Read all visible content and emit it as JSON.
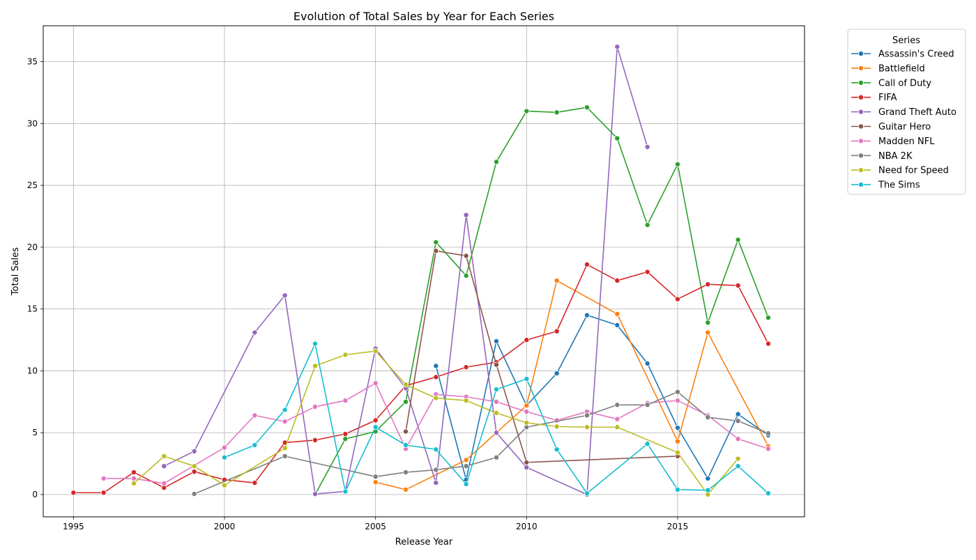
{
  "chart_data": {
    "type": "line",
    "title": "Evolution of Total Sales by Year for Each Series",
    "xlabel": "Release Year",
    "ylabel": "Total Sales",
    "xlim": [
      1994,
      2019.2
    ],
    "ylim": [
      -1.8,
      37.9
    ],
    "xticks": [
      1995,
      2000,
      2005,
      2010,
      2015
    ],
    "yticks": [
      0,
      5,
      10,
      15,
      20,
      25,
      30,
      35
    ],
    "grid": true,
    "legend": {
      "title": "Series",
      "placement": "outside-top-right"
    },
    "series": [
      {
        "name": "Assassin's Creed",
        "color": "#1f77b4",
        "points": [
          [
            2007,
            10.4
          ],
          [
            2008,
            1.2
          ],
          [
            2009,
            12.4
          ],
          [
            2010,
            7.2
          ],
          [
            2011,
            9.8
          ],
          [
            2012,
            14.5
          ],
          [
            2013,
            13.7
          ],
          [
            2014,
            10.6
          ],
          [
            2015,
            5.4
          ],
          [
            2016,
            1.3
          ],
          [
            2017,
            6.5
          ],
          [
            2018,
            4.8
          ]
        ]
      },
      {
        "name": "Battlefield",
        "color": "#ff7f0e",
        "points": [
          [
            2005,
            1.0
          ],
          [
            2006,
            0.4
          ],
          [
            2008,
            2.8
          ],
          [
            2010,
            7.2
          ],
          [
            2011,
            17.3
          ],
          [
            2013,
            14.6
          ],
          [
            2015,
            4.3
          ],
          [
            2016,
            13.1
          ],
          [
            2018,
            3.9
          ]
        ]
      },
      {
        "name": "Call of Duty",
        "color": "#2ca02c",
        "points": [
          [
            2003,
            0.0
          ],
          [
            2004,
            4.5
          ],
          [
            2005,
            5.1
          ],
          [
            2006,
            7.5
          ],
          [
            2007,
            20.4
          ],
          [
            2008,
            17.7
          ],
          [
            2009,
            26.9
          ],
          [
            2010,
            31.0
          ],
          [
            2011,
            30.9
          ],
          [
            2012,
            31.3
          ],
          [
            2013,
            28.8
          ],
          [
            2014,
            21.8
          ],
          [
            2015,
            26.7
          ],
          [
            2016,
            13.9
          ],
          [
            2017,
            20.6
          ],
          [
            2018,
            14.3
          ]
        ]
      },
      {
        "name": "FIFA",
        "color": "#d62728",
        "points": [
          [
            1995,
            0.15
          ],
          [
            1996,
            0.15
          ],
          [
            1997,
            1.8
          ],
          [
            1998,
            0.55
          ],
          [
            1999,
            1.85
          ],
          [
            2000,
            1.2
          ],
          [
            2001,
            0.95
          ],
          [
            2002,
            4.2
          ],
          [
            2003,
            4.4
          ],
          [
            2004,
            4.9
          ],
          [
            2005,
            6.0
          ],
          [
            2006,
            8.8
          ],
          [
            2007,
            9.5
          ],
          [
            2008,
            10.3
          ],
          [
            2009,
            10.7
          ],
          [
            2010,
            12.5
          ],
          [
            2011,
            13.2
          ],
          [
            2012,
            18.6
          ],
          [
            2013,
            17.3
          ],
          [
            2014,
            18.0
          ],
          [
            2015,
            15.8
          ],
          [
            2016,
            17.0
          ],
          [
            2017,
            16.9
          ],
          [
            2018,
            12.2
          ]
        ]
      },
      {
        "name": "Grand Theft Auto",
        "color": "#9467bd",
        "points": [
          [
            1998,
            2.3
          ],
          [
            1999,
            3.5
          ],
          [
            2001,
            13.1
          ],
          [
            2002,
            16.1
          ],
          [
            2003,
            0.05
          ],
          [
            2004,
            0.25
          ],
          [
            2005,
            11.8
          ],
          [
            2006,
            8.6
          ],
          [
            2007,
            0.95
          ],
          [
            2008,
            22.6
          ],
          [
            2009,
            5.0
          ],
          [
            2010,
            2.2
          ],
          [
            2012,
            0.0
          ],
          [
            2013,
            36.2
          ],
          [
            2014,
            28.1
          ]
        ]
      },
      {
        "name": "Guitar Hero",
        "color": "#8c564b",
        "points": [
          [
            2006,
            5.1
          ],
          [
            2007,
            19.7
          ],
          [
            2008,
            19.3
          ],
          [
            2009,
            10.5
          ],
          [
            2010,
            2.6
          ],
          [
            2015,
            3.1
          ]
        ]
      },
      {
        "name": "Madden NFL",
        "color": "#e377c2",
        "points": [
          [
            1996,
            1.3
          ],
          [
            1997,
            1.3
          ],
          [
            1998,
            0.9
          ],
          [
            2000,
            3.8
          ],
          [
            2001,
            6.4
          ],
          [
            2002,
            5.9
          ],
          [
            2003,
            7.1
          ],
          [
            2004,
            7.6
          ],
          [
            2005,
            9.0
          ],
          [
            2006,
            3.7
          ],
          [
            2007,
            8.1
          ],
          [
            2008,
            7.9
          ],
          [
            2009,
            7.5
          ],
          [
            2010,
            6.7
          ],
          [
            2011,
            6.0
          ],
          [
            2012,
            6.7
          ],
          [
            2013,
            6.1
          ],
          [
            2014,
            7.4
          ],
          [
            2015,
            7.6
          ],
          [
            2016,
            6.4
          ],
          [
            2017,
            4.5
          ],
          [
            2018,
            3.7
          ]
        ]
      },
      {
        "name": "NBA 2K",
        "color": "#7f7f7f",
        "points": [
          [
            1999,
            0.05
          ],
          [
            2002,
            3.1
          ],
          [
            2005,
            1.45
          ],
          [
            2006,
            1.8
          ],
          [
            2007,
            2.0
          ],
          [
            2008,
            2.3
          ],
          [
            2009,
            3.0
          ],
          [
            2010,
            5.45
          ],
          [
            2012,
            6.4
          ],
          [
            2013,
            7.25
          ],
          [
            2014,
            7.25
          ],
          [
            2015,
            8.3
          ],
          [
            2016,
            6.25
          ],
          [
            2017,
            5.95
          ],
          [
            2018,
            4.95
          ]
        ]
      },
      {
        "name": "Need for Speed",
        "color": "#bcbd22",
        "points": [
          [
            1997,
            0.9
          ],
          [
            1998,
            3.1
          ],
          [
            1999,
            2.3
          ],
          [
            2000,
            0.75
          ],
          [
            2002,
            3.75
          ],
          [
            2003,
            10.4
          ],
          [
            2004,
            11.3
          ],
          [
            2005,
            11.6
          ],
          [
            2006,
            8.9
          ],
          [
            2007,
            7.8
          ],
          [
            2008,
            7.6
          ],
          [
            2009,
            6.6
          ],
          [
            2010,
            5.8
          ],
          [
            2011,
            5.5
          ],
          [
            2012,
            5.45
          ],
          [
            2013,
            5.45
          ],
          [
            2015,
            3.4
          ],
          [
            2016,
            0.0
          ],
          [
            2017,
            2.9
          ]
        ]
      },
      {
        "name": "The Sims",
        "color": "#17becf",
        "points": [
          [
            2000,
            3.0
          ],
          [
            2001,
            4.0
          ],
          [
            2002,
            6.85
          ],
          [
            2003,
            12.2
          ],
          [
            2004,
            0.25
          ],
          [
            2005,
            5.45
          ],
          [
            2006,
            4.0
          ],
          [
            2007,
            3.65
          ],
          [
            2008,
            0.85
          ],
          [
            2009,
            8.5
          ],
          [
            2010,
            9.35
          ],
          [
            2011,
            3.65
          ],
          [
            2012,
            0.1
          ],
          [
            2014,
            4.1
          ],
          [
            2015,
            0.4
          ],
          [
            2016,
            0.35
          ],
          [
            2017,
            2.3
          ],
          [
            2018,
            0.1
          ]
        ]
      }
    ]
  }
}
